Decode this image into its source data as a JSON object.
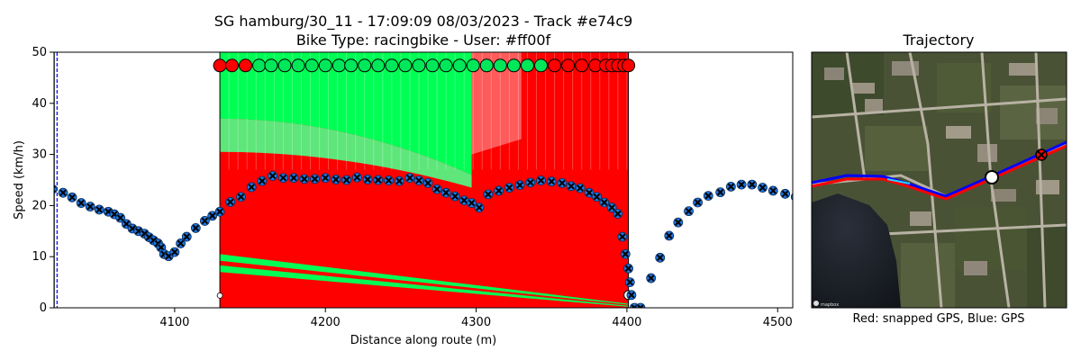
{
  "chart_data": [
    {
      "type": "scatter",
      "title": "SG hamburg/30_11 - 17:09:09 08/03/2023 - Track #e74c9",
      "subtitle": "Bike Type: racingbike - User: #ff00f",
      "xlabel": "Distance along route (m)",
      "ylabel": "Speed (km/h)",
      "xlim": [
        4020,
        4510
      ],
      "ylim": [
        0,
        50
      ],
      "xticks": [
        4100,
        4200,
        4300,
        4400,
        4500
      ],
      "yticks": [
        0,
        10,
        20,
        30,
        40,
        50
      ],
      "grid": false,
      "speed_series": {
        "marker_color": "#1f77e0",
        "cross_color": "#000000",
        "x": [
          4019,
          4026,
          4032,
          4038,
          4044,
          4050,
          4056,
          4060,
          4064,
          4068,
          4072,
          4076,
          4080,
          4083,
          4086,
          4089,
          4091,
          4093,
          4096,
          4100,
          4104,
          4108,
          4114,
          4120,
          4125,
          4130,
          4137,
          4144,
          4151,
          4158,
          4165,
          4172,
          4179,
          4186,
          4193,
          4200,
          4207,
          4214,
          4221,
          4228,
          4235,
          4242,
          4249,
          4256,
          4262,
          4268,
          4274,
          4280,
          4286,
          4292,
          4297,
          4302,
          4308,
          4315,
          4322,
          4329,
          4336,
          4343,
          4350,
          4357,
          4363,
          4369,
          4375,
          4380,
          4385,
          4390,
          4394,
          4397,
          4399,
          4401,
          4402,
          4403,
          4405,
          4409,
          4416,
          4422,
          4428,
          4434,
          4441,
          4447,
          4454,
          4462,
          4469,
          4476,
          4483,
          4490,
          4497,
          4505,
          4512
        ],
        "y": [
          23.2,
          22.5,
          21.6,
          20.5,
          19.8,
          19.2,
          18.8,
          18.3,
          17.6,
          16.4,
          15.5,
          15.0,
          14.5,
          13.8,
          13.2,
          12.6,
          11.8,
          10.5,
          10.1,
          10.9,
          12.6,
          13.9,
          15.6,
          17.0,
          18.0,
          18.8,
          20.7,
          21.7,
          23.6,
          24.8,
          25.8,
          25.4,
          25.4,
          25.2,
          25.2,
          25.4,
          25.1,
          25.0,
          25.5,
          25.1,
          25.0,
          24.9,
          24.8,
          25.4,
          24.9,
          24.4,
          23.2,
          22.5,
          21.8,
          21.0,
          20.5,
          19.6,
          22.2,
          22.9,
          23.5,
          24.0,
          24.5,
          24.9,
          24.7,
          24.4,
          23.8,
          23.4,
          22.5,
          21.7,
          20.6,
          19.6,
          18.4,
          13.9,
          10.5,
          7.7,
          5.0,
          2.5,
          0.0,
          0.0,
          5.8,
          9.8,
          14.1,
          16.7,
          18.9,
          20.6,
          21.9,
          22.6,
          23.7,
          24.1,
          24.1,
          23.5,
          22.9,
          22.3,
          21.7
        ]
      },
      "signal_markers": {
        "y": 47.4,
        "x": [
          4130,
          4138,
          4147,
          4156,
          4164,
          4173,
          4182,
          4191,
          4200,
          4209,
          4217,
          4226,
          4235,
          4244,
          4253,
          4262,
          4271,
          4280,
          4289,
          4298,
          4307,
          4316,
          4325,
          4334,
          4343,
          4352,
          4361,
          4370,
          4379,
          4386,
          4390,
          4394,
          4398,
          4401
        ],
        "states": [
          "red",
          "red",
          "red",
          "green",
          "green",
          "green",
          "green",
          "green",
          "green",
          "green",
          "green",
          "green",
          "green",
          "green",
          "green",
          "green",
          "green",
          "green",
          "green",
          "green",
          "green",
          "green",
          "green",
          "green",
          "green",
          "red",
          "red",
          "red",
          "red",
          "red",
          "red",
          "red",
          "red",
          "red"
        ],
        "colors": {
          "red": "#ff0000",
          "green": "#00e85a"
        }
      },
      "signal_window": {
        "x_start": 4130,
        "x_end": 4401
      },
      "guide_line": {
        "x": 4022,
        "color": "#0000ff"
      },
      "phase_colors": {
        "red": "#ff0000",
        "green": "#00ff55",
        "light_red": "#ff6b6b",
        "light_green": "#4dff88"
      }
    },
    {
      "type": "map",
      "title": "Trajectory",
      "caption": "Red: snapped GPS, Blue: GPS",
      "map_attribution": "mapbox",
      "colors": {
        "snapped": "#ff0000",
        "gps": "#0000ff"
      }
    }
  ]
}
